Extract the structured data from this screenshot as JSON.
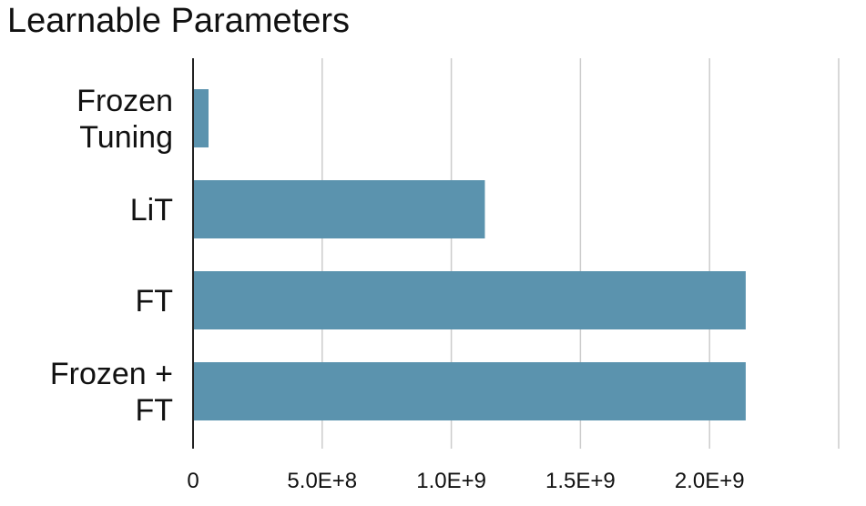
{
  "chart_data": {
    "type": "bar",
    "orientation": "horizontal",
    "title": "Learnable Parameters",
    "xlabel": "",
    "ylabel": "",
    "categories": [
      [
        "Frozen",
        "Tuning"
      ],
      [
        "LiT"
      ],
      [
        "FT"
      ],
      [
        "Frozen +",
        "FT"
      ]
    ],
    "values": [
      60000000,
      1130000000,
      2140000000,
      2140000000
    ],
    "xlim": [
      0,
      2500000000
    ],
    "xticks": [
      0,
      500000000,
      1000000000,
      1500000000,
      2000000000,
      2500000000
    ],
    "xtick_labels": [
      "0",
      "5.0E+8",
      "1.0E+9",
      "1.5E+9",
      "2.0E+9",
      ""
    ],
    "grid": "vertical",
    "legend": "none",
    "bar_color": "#5b93ae",
    "grid_color": "#cccccc",
    "axis_color": "#222222"
  }
}
